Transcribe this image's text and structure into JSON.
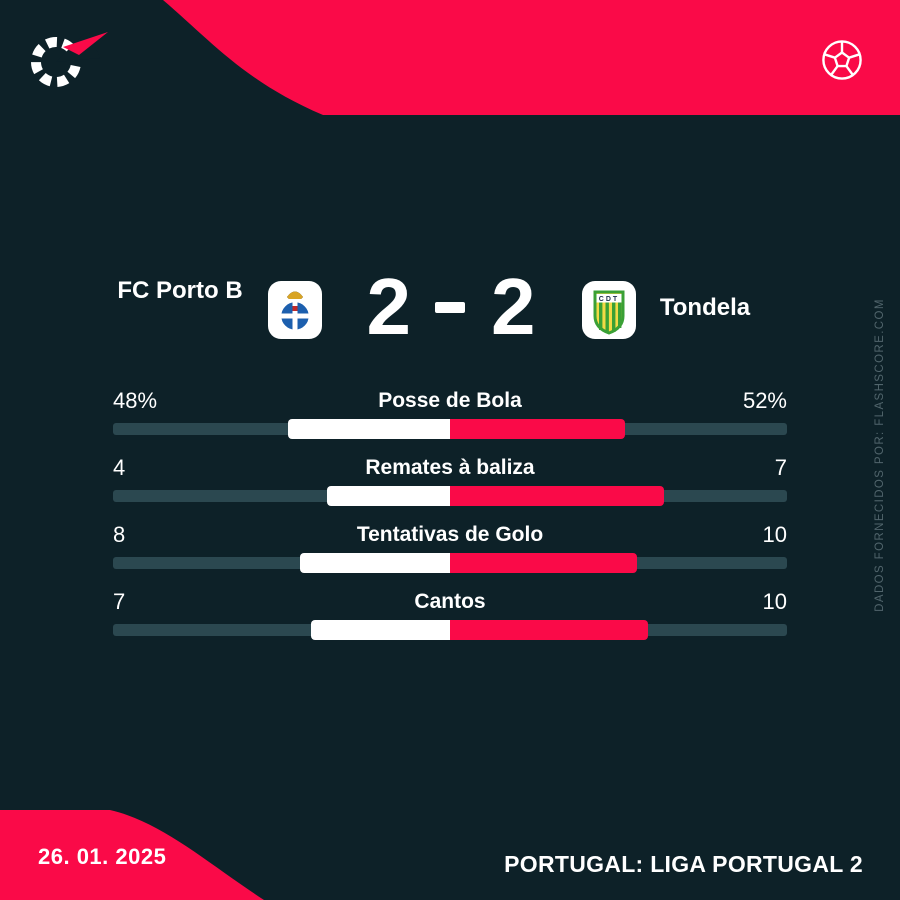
{
  "theme": {
    "bg": "#0d2128",
    "accent": "#fa0a48",
    "track": "#2b4850",
    "muted": "#51656c",
    "text": "#ffffff"
  },
  "icons": {
    "logo": "flashscore-logo",
    "ball": "soccer-ball-icon",
    "home_badge": "fc-porto-crest",
    "away_badge": "tondela-crest"
  },
  "match": {
    "home": {
      "name": "FC Porto B",
      "score": "2"
    },
    "away": {
      "name": "Tondela",
      "score": "2",
      "badge_text": "CDT"
    },
    "score_separator": "-"
  },
  "chart_data": {
    "type": "bar",
    "orientation": "horizontal-diverging",
    "title": "FC Porto B 2 - 2 Tondela",
    "categories": [
      "Posse de Bola",
      "Remates à baliza",
      "Tentativas de Golo",
      "Cantos"
    ],
    "series": [
      {
        "name": "FC Porto B",
        "values": [
          48,
          4,
          8,
          7
        ]
      },
      {
        "name": "Tondela",
        "values": [
          52,
          7,
          10,
          10
        ]
      }
    ],
    "rows": [
      {
        "label": "Posse de Bola",
        "home": 48,
        "away": 52,
        "home_display": "48%",
        "away_display": "52%"
      },
      {
        "label": "Remates à baliza",
        "home": 4,
        "away": 7,
        "home_display": "4",
        "away_display": "7"
      },
      {
        "label": "Tentativas de Golo",
        "home": 8,
        "away": 10,
        "home_display": "8",
        "away_display": "10"
      },
      {
        "label": "Cantos",
        "home": 7,
        "away": 10,
        "home_display": "7",
        "away_display": "10"
      }
    ],
    "legend_position": "none",
    "grid": false,
    "colors": {
      "home_bar": "#ffffff",
      "away_bar": "#fa0a48",
      "bar_track": "#2b4850"
    }
  },
  "footer": {
    "date": "26. 01. 2025",
    "competition": "PORTUGAL: LIGA PORTUGAL 2"
  },
  "attribution": "DADOS FORNECIDOS POR: FLASHSCORE.COM"
}
